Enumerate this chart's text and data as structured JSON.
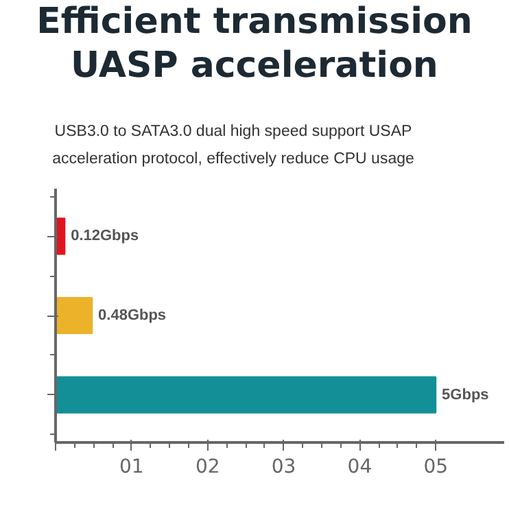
{
  "chart_data": {
    "type": "bar",
    "orientation": "horizontal",
    "title": "Efficient transmission UASP acceleration",
    "subtitle": "USB3.0 to SATA3.0 dual high speed support USAP acceleration protocol, effectively reduce CPU usage",
    "categories": [
      null,
      null,
      null
    ],
    "values": [
      0.12,
      0.48,
      5
    ],
    "colors": [
      "#e0141e",
      "#ebb22a",
      "#138f98"
    ],
    "value_labels": [
      "0.12Gbps",
      "0.48Gbps",
      "5Gbps"
    ],
    "xlim": [
      0,
      5.9
    ],
    "xticks": [
      {
        "value": 0,
        "label": null
      },
      {
        "value": 1,
        "label": "01"
      },
      {
        "value": 2,
        "label": "02"
      },
      {
        "value": 3,
        "label": "03"
      },
      {
        "value": 4,
        "label": "04"
      },
      {
        "value": 5,
        "label": "05"
      }
    ],
    "grid": false
  }
}
